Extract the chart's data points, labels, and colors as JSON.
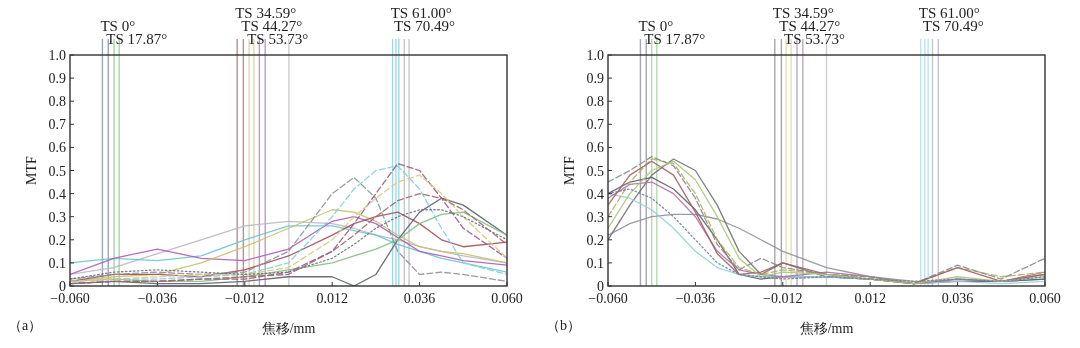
{
  "chart_data": [
    {
      "type": "line",
      "xlabel": "焦移/mm",
      "ylabel": "MTF",
      "annotations": [
        "（a）"
      ],
      "xlim": [
        -0.06,
        0.06
      ],
      "ylim": [
        0,
        1.0
      ],
      "xticks": [
        {
          "value": -0.06,
          "label": "−0.060"
        },
        {
          "value": -0.036,
          "label": "−0.036"
        },
        {
          "value": -0.012,
          "label": "−0.012"
        },
        {
          "value": 0.012,
          "label": "0.012"
        },
        {
          "value": 0.036,
          "label": "0.036"
        },
        {
          "value": 0.06,
          "label": "0.060"
        }
      ],
      "yticks": [
        0,
        0.1,
        0.2,
        0.3,
        0.4,
        0.5,
        0.6,
        0.7,
        0.8,
        0.9,
        {
          "value": 1.0,
          "label": "1.0"
        }
      ],
      "x": [
        -0.06,
        -0.048,
        -0.036,
        -0.024,
        -0.012,
        0,
        0.012,
        0.018,
        0.024,
        0.03,
        0.036,
        0.042,
        0.048,
        0.06
      ],
      "series": [
        {
          "color": "#b8b8c0",
          "values": [
            0.05,
            0.08,
            0.14,
            0.2,
            0.26,
            0.28,
            0.27,
            0.25,
            0.22,
            0.2,
            0.17,
            0.15,
            0.13,
            0.1
          ]
        },
        {
          "color": "#6cc4d4",
          "values": [
            0.1,
            0.12,
            0.11,
            0.13,
            0.2,
            0.26,
            0.26,
            0.24,
            0.22,
            0.18,
            0.15,
            0.12,
            0.1,
            0.06
          ]
        },
        {
          "color": "#b05cb8",
          "values": [
            0.05,
            0.12,
            0.16,
            0.12,
            0.11,
            0.16,
            0.28,
            0.3,
            0.27,
            0.21,
            0.15,
            0.13,
            0.11,
            0.09
          ]
        },
        {
          "color": "#c8c070",
          "values": [
            0.02,
            0.04,
            0.05,
            0.1,
            0.17,
            0.25,
            0.33,
            0.32,
            0.28,
            0.22,
            0.17,
            0.15,
            0.14,
            0.1
          ]
        },
        {
          "color": "#a05060",
          "values": [
            0.02,
            0.05,
            0.05,
            0.04,
            0.07,
            0.13,
            0.22,
            0.27,
            0.3,
            0.32,
            0.27,
            0.2,
            0.17,
            0.19
          ]
        },
        {
          "color": "#5a6070",
          "values": [
            0.01,
            0.02,
            0.01,
            0.01,
            0.02,
            0.04,
            0.04,
            0.0,
            0.05,
            0.2,
            0.32,
            0.38,
            0.35,
            0.22
          ]
        },
        {
          "color": "#80c080",
          "values": [
            0.02,
            0.03,
            0.02,
            0.02,
            0.04,
            0.07,
            0.1,
            0.13,
            0.16,
            0.2,
            0.27,
            0.31,
            0.32,
            0.22
          ]
        },
        {
          "color": "#909098",
          "line_style": "dashed",
          "values": [
            0.03,
            0.05,
            0.06,
            0.05,
            0.06,
            0.15,
            0.4,
            0.47,
            0.38,
            0.15,
            0.05,
            0.06,
            0.05,
            0.02
          ]
        },
        {
          "color": "#80d0dc",
          "line_style": "dashed",
          "values": [
            0.02,
            0.03,
            0.03,
            0.04,
            0.05,
            0.1,
            0.3,
            0.42,
            0.5,
            0.52,
            0.42,
            0.25,
            0.1,
            0.05
          ]
        },
        {
          "color": "#985888",
          "line_style": "dashed",
          "values": [
            0.01,
            0.02,
            0.02,
            0.03,
            0.03,
            0.06,
            0.15,
            0.27,
            0.4,
            0.53,
            0.5,
            0.38,
            0.25,
            0.12
          ]
        },
        {
          "color": "#d8c880",
          "line_style": "dashed",
          "values": [
            0.02,
            0.03,
            0.04,
            0.05,
            0.05,
            0.08,
            0.2,
            0.3,
            0.38,
            0.45,
            0.48,
            0.4,
            0.3,
            0.12
          ]
        },
        {
          "color": "#a06868",
          "line_style": "dashed",
          "values": [
            0.01,
            0.02,
            0.02,
            0.03,
            0.04,
            0.05,
            0.15,
            0.22,
            0.3,
            0.37,
            0.4,
            0.38,
            0.33,
            0.18
          ]
        },
        {
          "color": "#707080",
          "line_style": "dotted",
          "values": [
            0.03,
            0.06,
            0.07,
            0.06,
            0.05,
            0.06,
            0.12,
            0.18,
            0.25,
            0.3,
            0.33,
            0.33,
            0.3,
            0.2
          ]
        }
      ],
      "ref_lines": [
        {
          "axis": "x",
          "value": -0.0511,
          "label": "TS 0°",
          "color": "#8090a8"
        },
        {
          "axis": "x",
          "value": -0.0495,
          "label": "TS 17.87°",
          "color": "#8090a8"
        },
        {
          "axis": "x",
          "value": -0.0479,
          "color": "#90c890"
        },
        {
          "axis": "x",
          "value": -0.0465,
          "color": "#90c890"
        },
        {
          "axis": "x",
          "value": -0.0141,
          "label": "TS 34.59°",
          "color": "#b07070"
        },
        {
          "axis": "x",
          "value": -0.0124,
          "label": "TS 44.27°",
          "color": "#b07070"
        },
        {
          "axis": "x",
          "value": -0.0108,
          "label": "TS 53.73°",
          "color": "#d8cc90"
        },
        {
          "axis": "x",
          "value": -0.0095,
          "color": "#d8cc90"
        },
        {
          "axis": "x",
          "value": -0.008,
          "color": "#b080b8"
        },
        {
          "axis": "x",
          "value": -0.0064,
          "color": "#b080b8"
        },
        {
          "axis": "x",
          "value": 0.0001,
          "color": "#c0c0c8"
        },
        {
          "axis": "x",
          "value": 0.0286,
          "label": "TS 61.00°",
          "color": "#88d0dc"
        },
        {
          "axis": "x",
          "value": 0.0295,
          "label": "TS 70.49°",
          "color": "#88d0dc"
        },
        {
          "axis": "x",
          "value": 0.0303,
          "color": "#88d0dc"
        },
        {
          "axis": "x",
          "value": 0.0318,
          "color": "#b8b8c0"
        },
        {
          "axis": "x",
          "value": 0.0331,
          "color": "#b8b8c0"
        }
      ]
    },
    {
      "type": "line",
      "xlabel": "焦移/mm",
      "ylabel": "MTF",
      "annotations": [
        "（b）"
      ],
      "xlim": [
        -0.06,
        0.06
      ],
      "ylim": [
        0,
        1.0
      ],
      "xticks": [
        {
          "value": -0.06,
          "label": "−0.060"
        },
        {
          "value": -0.036,
          "label": "−0.036"
        },
        {
          "value": -0.012,
          "label": "−0.012"
        },
        {
          "value": 0.012,
          "label": "0.012"
        },
        {
          "value": 0.036,
          "label": "0.036"
        },
        {
          "value": 0.06,
          "label": "0.060"
        }
      ],
      "yticks": [
        0,
        0.1,
        0.2,
        0.3,
        0.4,
        0.5,
        0.6,
        0.7,
        0.8,
        0.9,
        {
          "value": 1.0,
          "label": "1.0"
        }
      ],
      "x": [
        -0.06,
        -0.054,
        -0.048,
        -0.042,
        -0.036,
        -0.03,
        -0.024,
        -0.018,
        -0.012,
        0,
        0.012,
        0.024,
        0.036,
        0.048,
        0.06
      ],
      "series": [
        {
          "color": "#909098",
          "values": [
            0.22,
            0.27,
            0.3,
            0.31,
            0.31,
            0.29,
            0.25,
            0.2,
            0.15,
            0.08,
            0.04,
            0.02,
            0.02,
            0.02,
            0.03
          ]
        },
        {
          "color": "#707078",
          "values": [
            0.2,
            0.35,
            0.48,
            0.55,
            0.5,
            0.35,
            0.15,
            0.05,
            0.1,
            0.04,
            0.03,
            0.01,
            0.03,
            0.02,
            0.05
          ]
        },
        {
          "color": "#606068",
          "values": [
            0.4,
            0.45,
            0.47,
            0.42,
            0.33,
            0.2,
            0.05,
            0.03,
            0.04,
            0.04,
            0.03,
            0.01,
            0.02,
            0.02,
            0.03
          ]
        },
        {
          "color": "#90d0dc",
          "values": [
            0.4,
            0.38,
            0.33,
            0.25,
            0.15,
            0.08,
            0.05,
            0.04,
            0.04,
            0.04,
            0.03,
            0.01,
            0.02,
            0.01,
            0.02
          ]
        },
        {
          "color": "#b070a8",
          "values": [
            0.38,
            0.44,
            0.45,
            0.4,
            0.3,
            0.15,
            0.07,
            0.05,
            0.04,
            0.06,
            0.04,
            0.01,
            0.03,
            0.02,
            0.06
          ]
        },
        {
          "color": "#b0b060",
          "line_style": "dashed",
          "values": [
            0.3,
            0.45,
            0.55,
            0.53,
            0.4,
            0.2,
            0.08,
            0.05,
            0.07,
            0.05,
            0.04,
            0.01,
            0.08,
            0.04,
            0.06
          ]
        },
        {
          "color": "#888890",
          "line_style": "dashed",
          "values": [
            0.45,
            0.5,
            0.56,
            0.52,
            0.38,
            0.18,
            0.07,
            0.12,
            0.08,
            0.05,
            0.04,
            0.01,
            0.09,
            0.03,
            0.12
          ]
        },
        {
          "color": "#a06060",
          "values": [
            0.35,
            0.48,
            0.54,
            0.48,
            0.32,
            0.14,
            0.05,
            0.06,
            0.1,
            0.05,
            0.03,
            0.01,
            0.08,
            0.02,
            0.05
          ]
        },
        {
          "color": "#a8c878",
          "values": [
            0.25,
            0.4,
            0.5,
            0.54,
            0.46,
            0.3,
            0.12,
            0.04,
            0.06,
            0.05,
            0.03,
            0.01,
            0.04,
            0.02,
            0.04
          ]
        },
        {
          "color": "#7080a8",
          "line_style": "dotted",
          "values": [
            0.4,
            0.42,
            0.38,
            0.3,
            0.2,
            0.1,
            0.05,
            0.04,
            0.03,
            0.04,
            0.03,
            0.02,
            0.03,
            0.02,
            0.04
          ]
        }
      ],
      "ref_lines": [
        {
          "axis": "x",
          "value": -0.0511,
          "label": "TS 0°",
          "color": "#909098"
        },
        {
          "axis": "x",
          "value": -0.0495,
          "label": "TS 17.87°",
          "color": "#909098"
        },
        {
          "axis": "x",
          "value": -0.048,
          "color": "#a8d0a0"
        },
        {
          "axis": "x",
          "value": -0.0466,
          "color": "#a8d0a0"
        },
        {
          "axis": "x",
          "value": -0.0142,
          "label": "TS 34.59°",
          "color": "#909098"
        },
        {
          "axis": "x",
          "value": -0.0124,
          "label": "TS 44.27°",
          "color": "#909098"
        },
        {
          "axis": "x",
          "value": -0.0111,
          "label": "TS 53.73°",
          "color": "#e0d8a0"
        },
        {
          "axis": "x",
          "value": -0.0097,
          "color": "#e0d8a0"
        },
        {
          "axis": "x",
          "value": -0.0081,
          "color": "#a898a8"
        },
        {
          "axis": "x",
          "value": -0.0065,
          "color": "#a898a8"
        },
        {
          "axis": "x",
          "value": 0.0,
          "color": "#c0c0c8"
        },
        {
          "axis": "x",
          "value": 0.0259,
          "label": "TS 61.00°",
          "color": "#a8dce4"
        },
        {
          "axis": "x",
          "value": 0.027,
          "label": "TS 70.49°",
          "color": "#a8dce4"
        },
        {
          "axis": "x",
          "value": 0.0279,
          "color": "#a8dce4"
        },
        {
          "axis": "x",
          "value": 0.0291,
          "color": "#b8b8c0"
        },
        {
          "axis": "x",
          "value": 0.0307,
          "color": "#b8b8c0"
        }
      ]
    }
  ]
}
